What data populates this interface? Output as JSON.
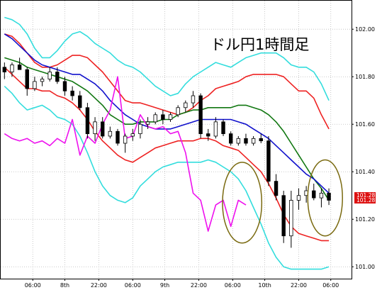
{
  "chart_data": {
    "type": "line",
    "title": "ドル円1時間足",
    "xlabel": "",
    "ylabel": "",
    "ylim": [
      100.95,
      102.12
    ],
    "y_ticks": [
      101.0,
      101.2,
      101.4,
      101.6,
      101.8,
      102.0
    ],
    "y_tick_labels": [
      "101.00",
      "101.20",
      "101.40",
      "101.60",
      "101.80",
      "102.00"
    ],
    "x_tick_labels": [
      "06:00",
      "8th",
      "22:00",
      "06:00",
      "9th",
      "22:00",
      "06:00",
      "10th",
      "22:00",
      "06:00"
    ],
    "grid": true,
    "legend": "none",
    "current_price": {
      "bid": "101.28",
      "ask": "101.28",
      "value": 101.28
    },
    "series": [
      {
        "key": "bb_upper2",
        "color": "#33dddd",
        "x": [
          0,
          2,
          4,
          6,
          8,
          10,
          12,
          14,
          16,
          18,
          20,
          22,
          24,
          26,
          28,
          30,
          32,
          34,
          36,
          38,
          40,
          42,
          44,
          46,
          48,
          50,
          52,
          54,
          56,
          58,
          60,
          62,
          64,
          66,
          68,
          70,
          72,
          74,
          76,
          78,
          80,
          82,
          84,
          86
        ],
        "values": [
          102.05,
          102.04,
          102.02,
          101.98,
          101.92,
          101.88,
          101.88,
          101.91,
          101.95,
          101.98,
          101.99,
          101.97,
          101.94,
          101.92,
          101.9,
          101.87,
          101.85,
          101.84,
          101.82,
          101.79,
          101.76,
          101.74,
          101.72,
          101.73,
          101.77,
          101.8,
          101.82,
          101.84,
          101.86,
          101.85,
          101.84,
          101.86,
          101.88,
          101.89,
          101.9,
          101.9,
          101.9,
          101.88,
          101.85,
          101.84,
          101.84,
          101.82,
          101.77,
          101.7
        ]
      },
      {
        "key": "bb_upper1",
        "color": "#ee2222",
        "x": [
          0,
          2,
          4,
          6,
          8,
          10,
          12,
          14,
          16,
          18,
          20,
          22,
          24,
          26,
          28,
          30,
          32,
          34,
          36,
          38,
          40,
          42,
          44,
          46,
          48,
          50,
          52,
          54,
          56,
          58,
          60,
          62,
          64,
          66,
          68,
          70,
          72,
          74,
          76,
          78,
          80,
          82,
          84,
          86
        ],
        "values": [
          101.98,
          101.97,
          101.94,
          101.9,
          101.86,
          101.84,
          101.84,
          101.85,
          101.87,
          101.89,
          101.89,
          101.88,
          101.85,
          101.82,
          101.78,
          101.74,
          101.7,
          101.69,
          101.69,
          101.68,
          101.67,
          101.66,
          101.65,
          101.64,
          101.65,
          101.67,
          101.7,
          101.72,
          101.75,
          101.76,
          101.77,
          101.78,
          101.8,
          101.81,
          101.81,
          101.81,
          101.81,
          101.8,
          101.77,
          101.74,
          101.74,
          101.71,
          101.64,
          101.58
        ]
      },
      {
        "key": "ma_green",
        "color": "#117711",
        "x": [
          0,
          2,
          4,
          6,
          8,
          10,
          12,
          14,
          16,
          18,
          20,
          22,
          24,
          26,
          28,
          30,
          32,
          34,
          36,
          38,
          40,
          42,
          44,
          46,
          48,
          50,
          52,
          54,
          56,
          58,
          60,
          62,
          64,
          66,
          68,
          70,
          72,
          74,
          76,
          78,
          80,
          82,
          84,
          86
        ],
        "values": [
          101.88,
          101.87,
          101.86,
          101.84,
          101.83,
          101.82,
          101.81,
          101.8,
          101.79,
          101.78,
          101.76,
          101.74,
          101.71,
          101.68,
          101.64,
          101.62,
          101.6,
          101.6,
          101.61,
          101.61,
          101.61,
          101.62,
          101.62,
          101.64,
          101.65,
          101.66,
          101.66,
          101.67,
          101.67,
          101.67,
          101.67,
          101.68,
          101.68,
          101.67,
          101.66,
          101.64,
          101.61,
          101.57,
          101.52,
          101.47,
          101.42,
          101.37,
          101.33,
          101.28
        ]
      },
      {
        "key": "ma_blue",
        "color": "#1111cc",
        "x": [
          0,
          2,
          4,
          6,
          8,
          10,
          12,
          14,
          16,
          18,
          20,
          22,
          24,
          26,
          28,
          30,
          32,
          34,
          36,
          38,
          40,
          42,
          44,
          46,
          48,
          50,
          52,
          54,
          56,
          58,
          60,
          62,
          64,
          66,
          68,
          70,
          72,
          74,
          76,
          78,
          80,
          82,
          84,
          86
        ],
        "values": [
          101.98,
          101.96,
          101.93,
          101.9,
          101.87,
          101.85,
          101.84,
          101.83,
          101.82,
          101.81,
          101.81,
          101.79,
          101.77,
          101.74,
          101.7,
          101.67,
          101.64,
          101.62,
          101.6,
          101.59,
          101.58,
          101.58,
          101.58,
          101.59,
          101.6,
          101.61,
          101.62,
          101.62,
          101.62,
          101.62,
          101.62,
          101.61,
          101.6,
          101.58,
          101.56,
          101.54,
          101.51,
          101.48,
          101.45,
          101.42,
          101.39,
          101.37,
          101.34,
          101.31
        ]
      },
      {
        "key": "bb_lower1",
        "color": "#ee2222",
        "x": [
          0,
          2,
          4,
          6,
          8,
          10,
          12,
          14,
          16,
          18,
          20,
          22,
          24,
          26,
          28,
          30,
          32,
          34,
          36,
          38,
          40,
          42,
          44,
          46,
          48,
          50,
          52,
          54,
          56,
          58,
          60,
          62,
          64,
          66,
          68,
          70,
          72,
          74,
          76,
          78,
          80,
          82,
          84,
          86
        ],
        "values": [
          101.84,
          101.81,
          101.78,
          101.75,
          101.75,
          101.74,
          101.74,
          101.72,
          101.71,
          101.69,
          101.66,
          101.62,
          101.57,
          101.53,
          101.5,
          101.47,
          101.45,
          101.44,
          101.46,
          101.48,
          101.5,
          101.51,
          101.52,
          101.53,
          101.53,
          101.53,
          101.54,
          101.54,
          101.53,
          101.51,
          101.5,
          101.49,
          101.46,
          101.43,
          101.4,
          101.35,
          101.29,
          101.22,
          101.17,
          101.14,
          101.13,
          101.12,
          101.11,
          101.11
        ]
      },
      {
        "key": "bb_lower2",
        "color": "#33dddd",
        "x": [
          0,
          2,
          4,
          6,
          8,
          10,
          12,
          14,
          16,
          18,
          20,
          22,
          24,
          26,
          28,
          30,
          32,
          34,
          36,
          38,
          40,
          42,
          44,
          46,
          48,
          50,
          52,
          54,
          56,
          58,
          60,
          62,
          64,
          66,
          68,
          70,
          72,
          74,
          76,
          78,
          80,
          82,
          84,
          86
        ],
        "values": [
          101.76,
          101.73,
          101.69,
          101.66,
          101.67,
          101.68,
          101.66,
          101.63,
          101.62,
          101.6,
          101.55,
          101.48,
          101.4,
          101.34,
          101.3,
          101.28,
          101.27,
          101.29,
          101.34,
          101.37,
          101.4,
          101.42,
          101.43,
          101.44,
          101.44,
          101.44,
          101.44,
          101.45,
          101.44,
          101.42,
          101.4,
          101.37,
          101.32,
          101.25,
          101.18,
          101.1,
          101.04,
          101.0,
          100.99,
          100.99,
          100.99,
          100.99,
          100.99,
          101.0
        ]
      },
      {
        "key": "lagging",
        "color": "#ee11ee",
        "x": [
          0,
          2,
          4,
          6,
          8,
          10,
          12,
          14,
          16,
          18,
          20,
          22,
          24,
          26,
          28,
          30,
          32,
          34,
          36,
          38,
          40,
          42,
          44,
          46,
          48,
          50,
          52,
          54,
          56,
          58,
          60,
          62,
          64
        ],
        "values": [
          101.56,
          101.54,
          101.53,
          101.54,
          101.52,
          101.53,
          101.51,
          101.54,
          101.52,
          101.62,
          101.47,
          101.55,
          101.52,
          101.6,
          101.66,
          101.8,
          101.54,
          101.55,
          101.64,
          101.59,
          101.58,
          101.59,
          101.56,
          101.57,
          101.48,
          101.31,
          101.28,
          101.15,
          101.26,
          101.28,
          101.17,
          101.28,
          101.26
        ]
      }
    ],
    "candles": [
      {
        "x": 0,
        "o": 101.84,
        "h": 101.86,
        "l": 101.79,
        "c": 101.82
      },
      {
        "x": 2,
        "o": 101.82,
        "h": 101.86,
        "l": 101.8,
        "c": 101.85
      },
      {
        "x": 4,
        "o": 101.85,
        "h": 101.88,
        "l": 101.83,
        "c": 101.83
      },
      {
        "x": 6,
        "o": 101.83,
        "h": 101.84,
        "l": 101.72,
        "c": 101.75
      },
      {
        "x": 8,
        "o": 101.75,
        "h": 101.8,
        "l": 101.74,
        "c": 101.78
      },
      {
        "x": 10,
        "o": 101.78,
        "h": 101.8,
        "l": 101.76,
        "c": 101.79
      },
      {
        "x": 12,
        "o": 101.79,
        "h": 101.84,
        "l": 101.78,
        "c": 101.82
      },
      {
        "x": 14,
        "o": 101.82,
        "h": 101.84,
        "l": 101.77,
        "c": 101.78
      },
      {
        "x": 16,
        "o": 101.78,
        "h": 101.8,
        "l": 101.72,
        "c": 101.74
      },
      {
        "x": 18,
        "o": 101.74,
        "h": 101.76,
        "l": 101.7,
        "c": 101.72
      },
      {
        "x": 20,
        "o": 101.72,
        "h": 101.74,
        "l": 101.66,
        "c": 101.67
      },
      {
        "x": 22,
        "o": 101.67,
        "h": 101.69,
        "l": 101.54,
        "c": 101.56
      },
      {
        "x": 24,
        "o": 101.56,
        "h": 101.63,
        "l": 101.53,
        "c": 101.61
      },
      {
        "x": 26,
        "o": 101.61,
        "h": 101.63,
        "l": 101.54,
        "c": 101.55
      },
      {
        "x": 28,
        "o": 101.55,
        "h": 101.59,
        "l": 101.54,
        "c": 101.57
      },
      {
        "x": 30,
        "o": 101.57,
        "h": 101.58,
        "l": 101.51,
        "c": 101.52
      },
      {
        "x": 32,
        "o": 101.52,
        "h": 101.56,
        "l": 101.48,
        "c": 101.55
      },
      {
        "x": 34,
        "o": 101.55,
        "h": 101.58,
        "l": 101.53,
        "c": 101.56
      },
      {
        "x": 36,
        "o": 101.56,
        "h": 101.62,
        "l": 101.54,
        "c": 101.6
      },
      {
        "x": 38,
        "o": 101.6,
        "h": 101.63,
        "l": 101.58,
        "c": 101.61
      },
      {
        "x": 40,
        "o": 101.61,
        "h": 101.65,
        "l": 101.6,
        "c": 101.64
      },
      {
        "x": 42,
        "o": 101.64,
        "h": 101.66,
        "l": 101.6,
        "c": 101.62
      },
      {
        "x": 44,
        "o": 101.62,
        "h": 101.65,
        "l": 101.61,
        "c": 101.64
      },
      {
        "x": 46,
        "o": 101.64,
        "h": 101.68,
        "l": 101.63,
        "c": 101.67
      },
      {
        "x": 48,
        "o": 101.67,
        "h": 101.7,
        "l": 101.65,
        "c": 101.69
      },
      {
        "x": 50,
        "o": 101.69,
        "h": 101.74,
        "l": 101.67,
        "c": 101.72
      },
      {
        "x": 52,
        "o": 101.72,
        "h": 101.73,
        "l": 101.54,
        "c": 101.56
      },
      {
        "x": 54,
        "o": 101.56,
        "h": 101.58,
        "l": 101.53,
        "c": 101.55
      },
      {
        "x": 56,
        "o": 101.55,
        "h": 101.63,
        "l": 101.54,
        "c": 101.61
      },
      {
        "x": 58,
        "o": 101.61,
        "h": 101.62,
        "l": 101.55,
        "c": 101.56
      },
      {
        "x": 60,
        "o": 101.56,
        "h": 101.57,
        "l": 101.51,
        "c": 101.52
      },
      {
        "x": 62,
        "o": 101.52,
        "h": 101.55,
        "l": 101.51,
        "c": 101.54
      },
      {
        "x": 64,
        "o": 101.54,
        "h": 101.56,
        "l": 101.51,
        "c": 101.52
      },
      {
        "x": 66,
        "o": 101.52,
        "h": 101.55,
        "l": 101.51,
        "c": 101.54
      },
      {
        "x": 68,
        "o": 101.54,
        "h": 101.56,
        "l": 101.52,
        "c": 101.53
      },
      {
        "x": 70,
        "o": 101.53,
        "h": 101.55,
        "l": 101.34,
        "c": 101.36
      },
      {
        "x": 72,
        "o": 101.36,
        "h": 101.39,
        "l": 101.28,
        "c": 101.3
      },
      {
        "x": 74,
        "o": 101.3,
        "h": 101.32,
        "l": 101.1,
        "c": 101.13
      },
      {
        "x": 76,
        "o": 101.13,
        "h": 101.32,
        "l": 101.08,
        "c": 101.28
      },
      {
        "x": 78,
        "o": 101.28,
        "h": 101.33,
        "l": 101.24,
        "c": 101.3
      },
      {
        "x": 80,
        "o": 101.3,
        "h": 101.34,
        "l": 101.27,
        "c": 101.32
      },
      {
        "x": 82,
        "o": 101.32,
        "h": 101.35,
        "l": 101.28,
        "c": 101.29
      },
      {
        "x": 84,
        "o": 101.29,
        "h": 101.33,
        "l": 101.25,
        "c": 101.31
      },
      {
        "x": 86,
        "o": 101.31,
        "h": 101.33,
        "l": 101.26,
        "c": 101.28
      }
    ],
    "annotations": [
      {
        "shape": "ellipse",
        "color": "#7a6a10",
        "cx": 63,
        "cy": 101.27,
        "rx": 5.2,
        "ry": 0.17
      },
      {
        "shape": "ellipse",
        "color": "#7a6a10",
        "cx": 85,
        "cy": 101.29,
        "rx": 4.6,
        "ry": 0.16
      }
    ]
  }
}
